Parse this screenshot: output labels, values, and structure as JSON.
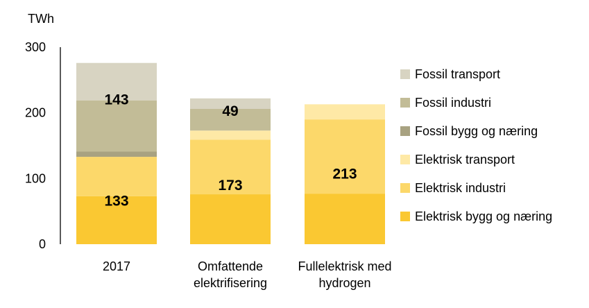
{
  "chart_data": {
    "type": "bar",
    "stacked": true,
    "ylabel": "TWh",
    "ylim": [
      0,
      300
    ],
    "yticks": [
      0,
      100,
      200,
      300
    ],
    "grid": false,
    "legend_position": "right",
    "categories": [
      "2017",
      "Omfattende elektrifisering",
      "Fullelektrisk med hydrogen"
    ],
    "category_lines": [
      [
        "2017"
      ],
      [
        "Omfattende",
        "elektrifisering"
      ],
      [
        "Fullelektrisk med",
        "hydrogen"
      ]
    ],
    "series": [
      {
        "name": "Elektrisk bygg og næring",
        "color": "#FAC832",
        "values": [
          73,
          76,
          77
        ]
      },
      {
        "name": "Elektrisk industri",
        "color": "#FCD86A",
        "values": [
          60,
          83,
          113
        ]
      },
      {
        "name": "Elektrisk transport",
        "color": "#FEE9A6",
        "values": [
          0,
          14,
          23
        ]
      },
      {
        "name": "Fossil bygg og næring",
        "color": "#A8A281",
        "values": [
          8,
          0,
          0
        ]
      },
      {
        "name": "Fossil industri",
        "color": "#C2BC97",
        "values": [
          78,
          33,
          0
        ]
      },
      {
        "name": "Fossil transport",
        "color": "#D8D4C2",
        "values": [
          57,
          16,
          0
        ]
      }
    ],
    "annotations": [
      {
        "category": 0,
        "text": "133",
        "value": 133,
        "y": 66
      },
      {
        "category": 0,
        "text": "143",
        "value": 143,
        "y": 220
      },
      {
        "category": 1,
        "text": "173",
        "value": 173,
        "y": 90
      },
      {
        "category": 1,
        "text": "49",
        "value": 49,
        "y": 203
      },
      {
        "category": 2,
        "text": "213",
        "value": 213,
        "y": 107
      }
    ]
  }
}
